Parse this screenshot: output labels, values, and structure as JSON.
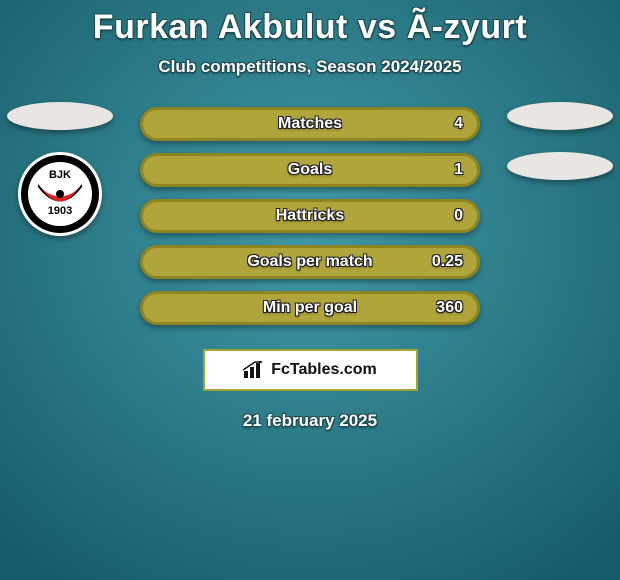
{
  "colors": {
    "bg_top": "#429aa9",
    "bg_bottom": "#155a66",
    "bar_fill": "#afa53a",
    "bar_border": "#8e8420",
    "oval_left": "#e9e5e3",
    "oval_right": "#e9e5e1",
    "brand_border": "#a9a034",
    "brand_bg": "#ffffff"
  },
  "title": "Furkan Akbulut vs Ã-zyurt",
  "subtitle": "Club competitions, Season 2024/2025",
  "bars": [
    {
      "label": "Matches",
      "value": "4"
    },
    {
      "label": "Goals",
      "value": "1"
    },
    {
      "label": "Hattricks",
      "value": "0"
    },
    {
      "label": "Goals per match",
      "value": "0.25"
    },
    {
      "label": "Min per goal",
      "value": "360"
    }
  ],
  "brand": "FcTables.com",
  "footer_date": "21 february 2025",
  "club_logo": {
    "outer": "#000000",
    "inner": "#ffffff",
    "top_text": "BJK",
    "year": "1903"
  }
}
